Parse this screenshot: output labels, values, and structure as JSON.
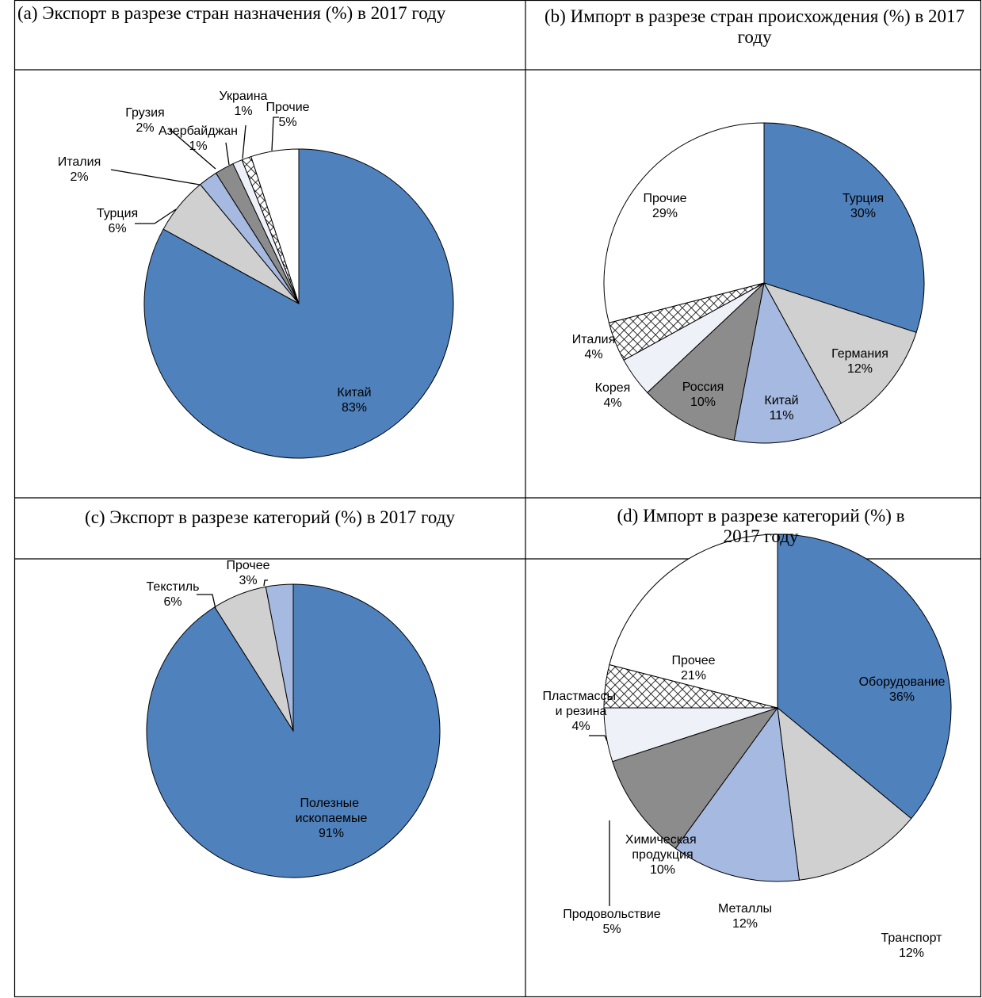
{
  "chart_data": [
    {
      "type": "pie",
      "title": "(a) Экспорт в разрезе стран назначения (%) в 2017 году",
      "categories": [
        "Китай",
        "Турция",
        "Италия",
        "Грузия",
        "Азербайджан",
        "Украина",
        "Прочие"
      ],
      "values": [
        83,
        6,
        2,
        2,
        1,
        1,
        5
      ],
      "value_labels": [
        "83%",
        "6%",
        "2%",
        "2%",
        "1%",
        "1%",
        "5%"
      ],
      "colors": [
        "#4f81bd",
        "#d0d0d0",
        "#a6b9e0",
        "#8c8c8c",
        "#eef2f8",
        "#ffffff",
        "#ffffff"
      ],
      "patterns": [
        null,
        null,
        null,
        null,
        null,
        "crosshatch",
        null
      ]
    },
    {
      "type": "pie",
      "title": "(b) Импорт в разрезе стран происхождения (%) в 2017 году",
      "categories": [
        "Турция",
        "Германия",
        "Китай",
        "Россия",
        "Корея",
        "Италия",
        "Прочие"
      ],
      "values": [
        30,
        12,
        11,
        10,
        4,
        4,
        29
      ],
      "value_labels": [
        "30%",
        "12%",
        "11%",
        "10%",
        "4%",
        "4%",
        "29%"
      ],
      "colors": [
        "#4f81bd",
        "#d0d0d0",
        "#a6b9e0",
        "#8c8c8c",
        "#eef2f8",
        "#ffffff",
        "#ffffff"
      ],
      "patterns": [
        null,
        null,
        null,
        null,
        null,
        "crosshatch",
        null
      ]
    },
    {
      "type": "pie",
      "title": "(c) Экспорт в разрезе категорий (%) в 2017 году",
      "categories": [
        "Полезные ископаемые",
        "Текстиль",
        "Прочее"
      ],
      "values": [
        91,
        6,
        3
      ],
      "value_labels": [
        "91%",
        "6%",
        "3%"
      ],
      "colors": [
        "#4f81bd",
        "#d0d0d0",
        "#a6b9e0"
      ],
      "patterns": [
        null,
        null,
        null
      ]
    },
    {
      "type": "pie",
      "title": "(d) Импорт в разрезе категорий (%) в 2017 году",
      "categories": [
        "Оборудование",
        "Транспорт",
        "Металлы",
        "Химическая продукция",
        "Продовольствие",
        "Пластмассы и резина",
        "Прочее"
      ],
      "values": [
        36,
        12,
        12,
        10,
        5,
        4,
        21
      ],
      "value_labels": [
        "36%",
        "12%",
        "12%",
        "10%",
        "5%",
        "4%",
        "21%"
      ],
      "colors": [
        "#4f81bd",
        "#d0d0d0",
        "#a6b9e0",
        "#8c8c8c",
        "#eef2f8",
        "#ffffff",
        "#ffffff"
      ],
      "patterns": [
        null,
        null,
        null,
        null,
        null,
        "crosshatch",
        null
      ]
    }
  ]
}
